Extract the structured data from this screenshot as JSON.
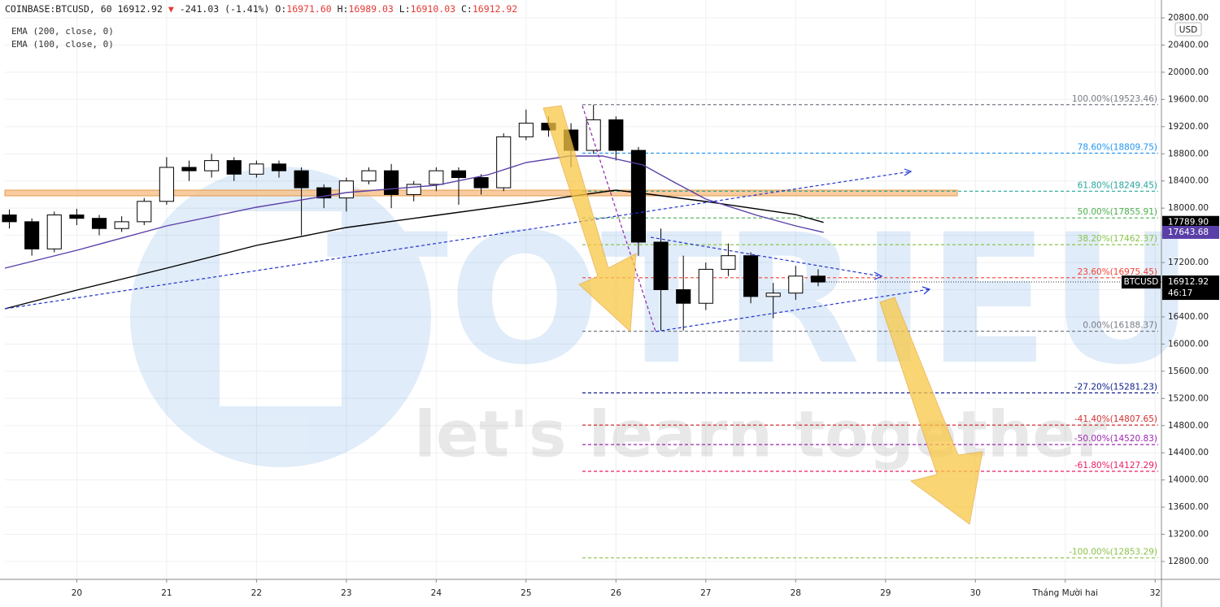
{
  "header": {
    "symbol": "COINBASE:BTCUSD, 60",
    "last": "16912.92",
    "change_arrow": "▼",
    "change": "-241.03 (-1.41%)",
    "ohlc": [
      {
        "key": "O:",
        "value": "16971.60"
      },
      {
        "key": "H:",
        "value": "16989.03"
      },
      {
        "key": "L:",
        "value": "16910.03"
      },
      {
        "key": "C:",
        "value": "16912.92"
      }
    ]
  },
  "currency": "USD",
  "watermark": {
    "title": "TOTRIEU",
    "slogan": "let's learn together"
  },
  "chart_data": {
    "type": "candlestick",
    "x": [
      19.25,
      19.5,
      19.75,
      20,
      20.25,
      20.5,
      20.75,
      21,
      21.25,
      21.5,
      21.75,
      22,
      22.25,
      22.5,
      22.75,
      23,
      23.25,
      23.5,
      23.75,
      24,
      24.25,
      24.5,
      24.75,
      25,
      25.25,
      25.5,
      25.75,
      26,
      26.25,
      26.5,
      26.75,
      27,
      27.25,
      27.5,
      27.75,
      28,
      28.25
    ],
    "open": [
      17900,
      17800,
      17400,
      17900,
      17850,
      17700,
      17800,
      18100,
      18600,
      18550,
      18700,
      18500,
      18650,
      18550,
      18300,
      18150,
      18400,
      18550,
      18200,
      18350,
      18550,
      18450,
      18300,
      19050,
      19250,
      19150,
      18850,
      19300,
      18850,
      17500,
      16800,
      16600,
      17100,
      17300,
      16700,
      16750,
      17000
    ],
    "high": [
      17980,
      17850,
      17950,
      17990,
      17900,
      17880,
      18150,
      18750,
      18700,
      18800,
      18750,
      18700,
      18700,
      18600,
      18350,
      18450,
      18600,
      18650,
      18400,
      18600,
      18600,
      18500,
      19100,
      19450,
      19350,
      19250,
      19520,
      19350,
      18900,
      17700,
      17300,
      17200,
      17480,
      17350,
      16900,
      17150,
      17100
    ],
    "low": [
      17700,
      17300,
      17350,
      17750,
      17600,
      17650,
      17750,
      18050,
      18400,
      18450,
      18400,
      18450,
      18450,
      17600,
      18000,
      17950,
      18350,
      18000,
      18100,
      18250,
      18050,
      18200,
      18250,
      19000,
      19050,
      18600,
      18800,
      18700,
      17300,
      16200,
      16200,
      16500,
      17000,
      16600,
      16380,
      16650,
      16850
    ],
    "close": [
      17800,
      17400,
      17900,
      17850,
      17700,
      17800,
      18100,
      18600,
      18550,
      18700,
      18500,
      18650,
      18550,
      18300,
      18150,
      18400,
      18550,
      18200,
      18350,
      18550,
      18450,
      18300,
      19050,
      19250,
      19150,
      18850,
      19300,
      18850,
      17500,
      16800,
      16600,
      17100,
      17300,
      16700,
      16750,
      17000,
      16912.92
    ],
    "up_color": "#ffffff",
    "down_color": "#000000",
    "series": [
      {
        "name": "EMA (200, close, 0)",
        "color": "#000000",
        "x": [
          19.2,
          20,
          21,
          22,
          23,
          24,
          25,
          25.48,
          26,
          26.3,
          27,
          28,
          28.31
        ],
        "values": [
          16519,
          16794,
          17117,
          17452,
          17715,
          17894,
          18074,
          18170,
          18265,
          18217,
          18097,
          17906,
          17789.9
        ],
        "last_value": {
          "value": 17789.9,
          "label": "17789.90"
        }
      },
      {
        "name": "EMA (100, close, 0)",
        "color": "#5b3fa8",
        "x": [
          19.2,
          20,
          21,
          22,
          23,
          24,
          24.58,
          25,
          25.48,
          25.85,
          26.3,
          26.66,
          27,
          27.57,
          28,
          28.31
        ],
        "values": [
          17117,
          17380,
          17739,
          18014,
          18229,
          18337,
          18492,
          18671,
          18767,
          18767,
          18636,
          18373,
          18133,
          17894,
          17739,
          17643.68
        ],
        "last_value": {
          "value": 17643.68,
          "label": "17643.68"
        }
      }
    ],
    "price_tag": {
      "name": "BTCUSD",
      "value": 16912.92,
      "label": "16912.92",
      "countdown": "46:17"
    },
    "fib_levels": [
      {
        "value": 19523.46,
        "label": "100.00%(19523.46)",
        "color": "#787b86"
      },
      {
        "value": 18809.75,
        "label": "78.60%(18809.75)",
        "color": "#2196f3"
      },
      {
        "value": 18249.45,
        "label": "61.80%(18249.45)",
        "color": "#26a69a"
      },
      {
        "value": 17855.91,
        "label": "50.00%(17855.91)",
        "color": "#4caf50"
      },
      {
        "value": 17462.37,
        "label": "38.20%(17462.37)",
        "color": "#8bc34a"
      },
      {
        "value": 16975.45,
        "label": "23.60%(16975.45)",
        "color": "#f44336"
      },
      {
        "value": 16188.37,
        "label": "0.00%(16188.37)",
        "color": "#787b86"
      },
      {
        "value": 15281.23,
        "label": "-27.20%(15281.23)",
        "color": "#0d1b8c"
      },
      {
        "value": 14807.65,
        "label": "-41.40%(14807.65)",
        "color": "#d32f2f"
      },
      {
        "value": 14520.83,
        "label": "-50.00%(14520.83)",
        "color": "#9c27b0"
      },
      {
        "value": 14127.29,
        "label": "-61.80%(14127.29)",
        "color": "#e91e63"
      },
      {
        "value": 12853.29,
        "label": "-100.00%(12853.29)",
        "color": "#8bc34a"
      }
    ],
    "xlim": [
      19.2,
      32.07
    ],
    "xticks": [
      20,
      21,
      22,
      23,
      24,
      25,
      26,
      27,
      28,
      29,
      30,
      {
        "value": 31,
        "label": "Tháng Mười hai"
      },
      32
    ],
    "ylim": [
      12537,
      20800
    ],
    "yticks": [
      {
        "value": 12800,
        "label": "12800.00"
      },
      {
        "value": 13200,
        "label": "13200.00"
      },
      {
        "value": 13600,
        "label": "13600.00"
      },
      {
        "value": 14000,
        "label": "14000.00"
      },
      {
        "value": 14400,
        "label": "14400.00"
      },
      {
        "value": 14800,
        "label": "14800.00"
      },
      {
        "value": 15200,
        "label": "15200.00"
      },
      {
        "value": 15600,
        "label": "15600.00"
      },
      {
        "value": 16000,
        "label": "16000.00"
      },
      {
        "value": 16400,
        "label": "16400.00"
      },
      {
        "value": 16800,
        "label": "16800.00"
      },
      {
        "value": 17200,
        "label": "17200.00"
      },
      {
        "value": 17600,
        "label": "17600.00"
      },
      {
        "value": 18000,
        "label": "18000.00"
      },
      {
        "value": 18400,
        "label": "18400.00"
      },
      {
        "value": 18800,
        "label": "18800.00"
      },
      {
        "value": 19200,
        "label": "19200.00"
      },
      {
        "value": 19600,
        "label": "19600.00"
      },
      {
        "value": 20000,
        "label": "20000.00"
      },
      {
        "value": 20400,
        "label": "20400.00"
      },
      {
        "value": 20800,
        "label": "20800.00"
      }
    ],
    "grid": true
  }
}
